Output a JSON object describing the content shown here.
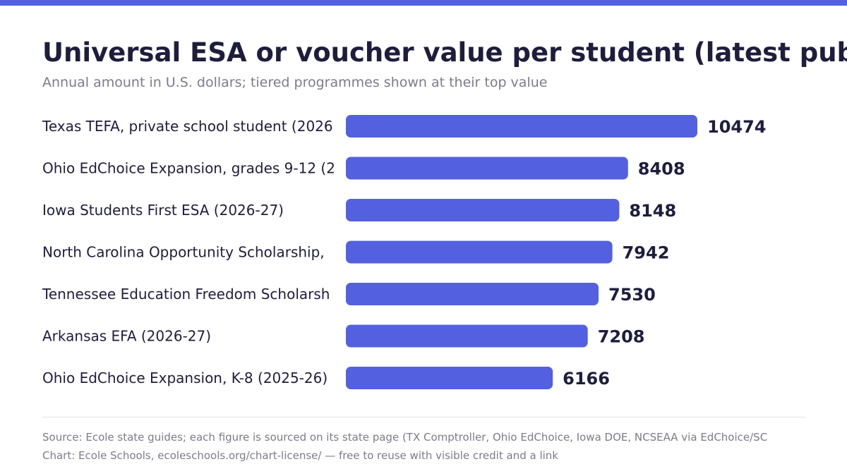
{
  "title": "Universal ESA or voucher value per student (latest published",
  "subtitle": "Annual amount in U.S. dollars; tiered programmes shown at their top value",
  "colors": {
    "accent": "#5360e0",
    "text": "#1f1d3d",
    "muted": "#7d7b8c"
  },
  "chart_data": {
    "type": "bar",
    "orientation": "horizontal",
    "categories": [
      "Texas TEFA, private school student (2026",
      "Ohio EdChoice Expansion, grades 9-12 (2",
      "Iowa Students First ESA (2026-27)",
      "North Carolina Opportunity Scholarship,",
      "Tennessee Education Freedom Scholarsh",
      "Arkansas EFA (2026-27)",
      "Ohio EdChoice Expansion, K-8 (2025-26)"
    ],
    "values": [
      10474,
      8408,
      8148,
      7942,
      7530,
      7208,
      6166
    ],
    "value_labels": [
      "10474",
      "8408",
      "8148",
      "7942",
      "7530",
      "7208",
      "6166"
    ],
    "xlim": [
      0,
      10474
    ],
    "grid": false,
    "legend": "none"
  },
  "footer": {
    "source": "Source: Ecole state guides; each figure is sourced on its state page (TX Comptroller, Ohio EdChoice, Iowa DOE, NCSEAA via EdChoice/SC",
    "credit": "Chart: Ecole Schools, ecoleschools.org/chart-license/ — free to reuse with visible credit and a link"
  }
}
